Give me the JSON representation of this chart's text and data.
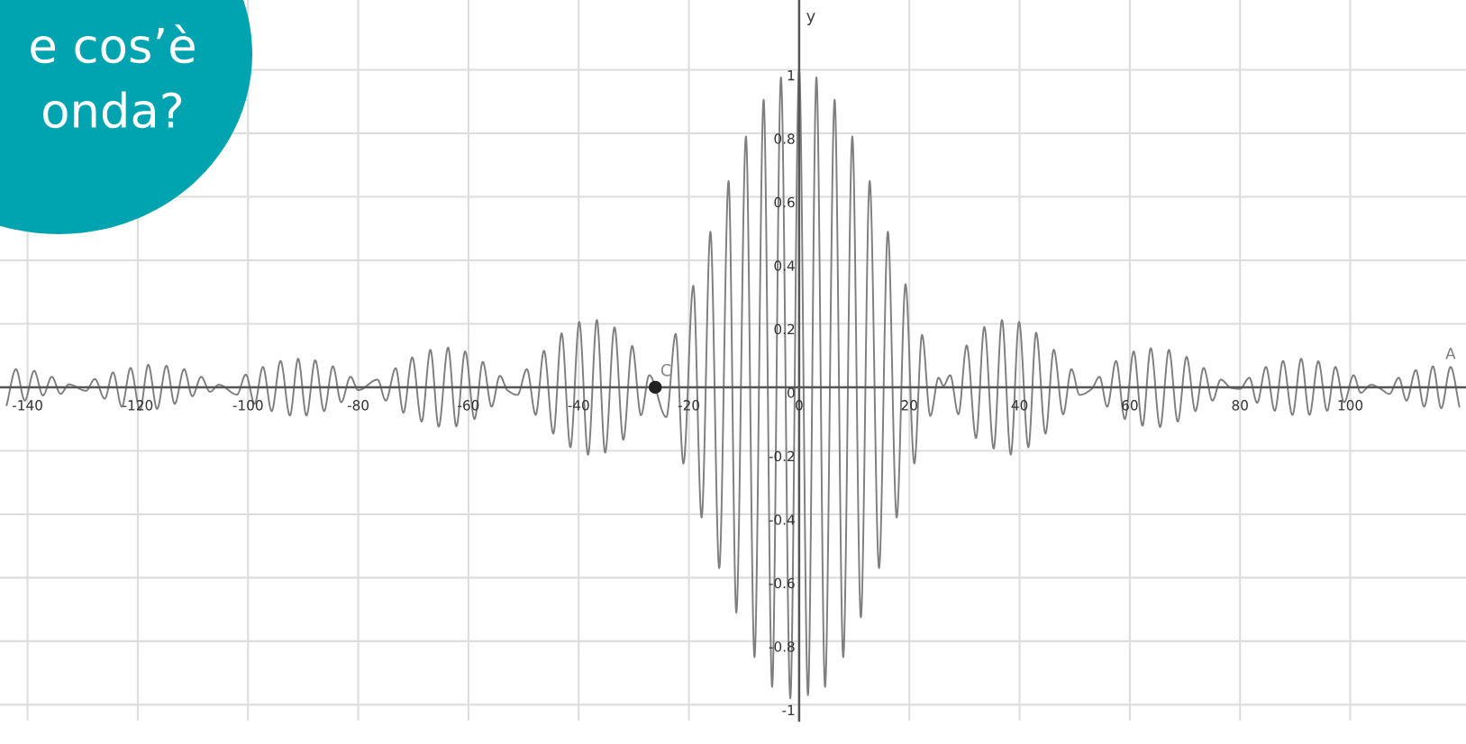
{
  "chart_data": {
    "type": "line",
    "ylabel": "y",
    "xlim": [
      -145,
      121
    ],
    "ylim": [
      -1.05,
      1.22
    ],
    "xticks": [
      -140,
      -120,
      -100,
      -80,
      -60,
      -40,
      -20,
      0,
      20,
      40,
      60,
      80,
      100
    ],
    "yticks": [
      -1,
      -0.8,
      -0.6,
      -0.4,
      -0.2,
      0,
      0.2,
      0.4,
      0.6,
      0.8,
      1
    ],
    "grid": true,
    "annotations": [
      "e cos’è",
      "onda?",
      {
        "text": "A",
        "x": 118.2,
        "y": 0.064
      }
    ],
    "series": [
      {
        "type": "line",
        "color": "#7f7f7f",
        "marker": "none",
        "x": [
          -143.8,
          -142.1,
          -140.5,
          -138.8,
          -137.2,
          -135.6,
          -134.0,
          -132.5,
          -129.4,
          -127.8,
          -126.0,
          -124.5,
          -122.9,
          -121.3,
          -119.6,
          -118.1,
          -116.5,
          -114.8,
          -113.3,
          -111.6,
          -110.1,
          -108.5,
          -106.9,
          -105.3,
          -102.0,
          -100.4,
          -98.8,
          -97.3,
          -95.7,
          -94.1,
          -92.4,
          -90.9,
          -89.4,
          -87.8,
          -86.2,
          -84.6,
          -83.1,
          -81.4,
          -80.0,
          -76.5,
          -75.0,
          -73.2,
          -71.8,
          -70.2,
          -68.5,
          -66.9,
          -65.4,
          -63.7,
          -62.2,
          -60.6,
          -58.9,
          -57.4,
          -55.8,
          -54.3,
          -52.9,
          -51.1,
          -49.4,
          -47.8,
          -46.3,
          -44.6,
          -43.1,
          -41.5,
          -39.9,
          -38.3,
          -36.7,
          -35.2,
          -33.5,
          -31.9,
          -30.3,
          -28.7,
          -27.2,
          -24.1,
          -22.4,
          -21.0,
          -19.2,
          -17.7,
          -16.1,
          -14.5,
          -12.8,
          -11.4,
          -9.65,
          -8.1,
          -6.44,
          -4.9,
          -3.3,
          -1.6,
          0,
          1.6,
          3.14,
          4.7,
          6.44,
          8.0,
          9.65,
          11.2,
          12.8,
          14.5,
          16.1,
          17.7,
          19.3,
          20.9,
          22.3,
          23.8,
          25.3,
          26.2,
          27.4,
          28.9,
          30.4,
          32.1,
          33.6,
          35.3,
          36.8,
          38.4,
          39.9,
          41.6,
          43.0,
          44.7,
          46.2,
          47.9,
          49.4,
          50.9,
          53.1,
          54.5,
          55.9,
          57.5,
          59.1,
          60.7,
          62.3,
          63.8,
          65.5,
          67.1,
          68.7,
          70.3,
          71.9,
          73.4,
          75.0,
          76.5,
          78.4,
          80.0,
          81.7,
          83.1,
          84.7,
          86.3,
          87.8,
          89.5,
          91.1,
          92.6,
          94.2,
          95.8,
          97.3,
          98.9,
          100.6,
          101.9,
          103.8,
          105.5,
          107.1,
          108.8,
          110.2,
          111.9,
          113.4,
          115.0,
          116.5,
          118.2,
          119.8
        ],
        "values": [
          -0.057,
          0.057,
          -0.042,
          0.052,
          -0.026,
          0.033,
          -0.021,
          0.009,
          -0.011,
          0.026,
          -0.036,
          0.047,
          -0.061,
          0.061,
          -0.071,
          0.071,
          -0.068,
          0.068,
          -0.052,
          0.057,
          -0.028,
          0.033,
          -0.014,
          0.008,
          -0.023,
          0.04,
          -0.052,
          0.064,
          -0.075,
          0.083,
          -0.089,
          0.09,
          -0.089,
          0.085,
          -0.075,
          0.066,
          -0.047,
          0.033,
          -0.009,
          0.024,
          -0.042,
          0.06,
          -0.08,
          0.094,
          -0.108,
          0.118,
          -0.124,
          0.125,
          -0.123,
          0.113,
          -0.1,
          0.08,
          -0.061,
          0.036,
          -0.01,
          -0.024,
          0.057,
          -0.087,
          0.115,
          -0.146,
          0.17,
          -0.189,
          0.206,
          -0.212,
          0.212,
          -0.206,
          0.189,
          -0.165,
          0.13,
          -0.088,
          0.038,
          -0.094,
          0.168,
          -0.24,
          0.32,
          -0.41,
          0.49,
          -0.57,
          0.65,
          -0.71,
          0.79,
          -0.85,
          0.906,
          -0.944,
          0.976,
          -0.98,
          1,
          -0.97,
          0.976,
          -0.944,
          0.906,
          -0.85,
          0.79,
          -0.725,
          0.65,
          -0.57,
          0.49,
          -0.41,
          0.325,
          -0.24,
          0.165,
          -0.09,
          0.03,
          0.005,
          0.038,
          -0.085,
          0.132,
          -0.16,
          0.19,
          -0.193,
          0.212,
          -0.212,
          0.206,
          -0.189,
          0.172,
          -0.146,
          0.118,
          -0.085,
          0.057,
          -0.024,
          -0.005,
          0.033,
          -0.061,
          0.083,
          -0.1,
          0.113,
          -0.121,
          0.123,
          -0.125,
          0.118,
          -0.108,
          0.096,
          -0.075,
          0.061,
          -0.042,
          0.024,
          -0.002,
          -0.005,
          0.03,
          -0.049,
          0.064,
          -0.074,
          0.083,
          -0.087,
          0.09,
          -0.087,
          0.082,
          -0.074,
          0.064,
          -0.047,
          0.038,
          -0.017,
          0.008,
          -0.005,
          -0.021,
          0.03,
          -0.042,
          0.054,
          -0.061,
          0.066,
          -0.066,
          0.064,
          -0.061
        ]
      },
      {
        "type": "scatter",
        "name": "C",
        "color": "#222222",
        "marker": "circle",
        "x": [
          -26.1
        ],
        "values": [
          0
        ]
      }
    ]
  }
}
